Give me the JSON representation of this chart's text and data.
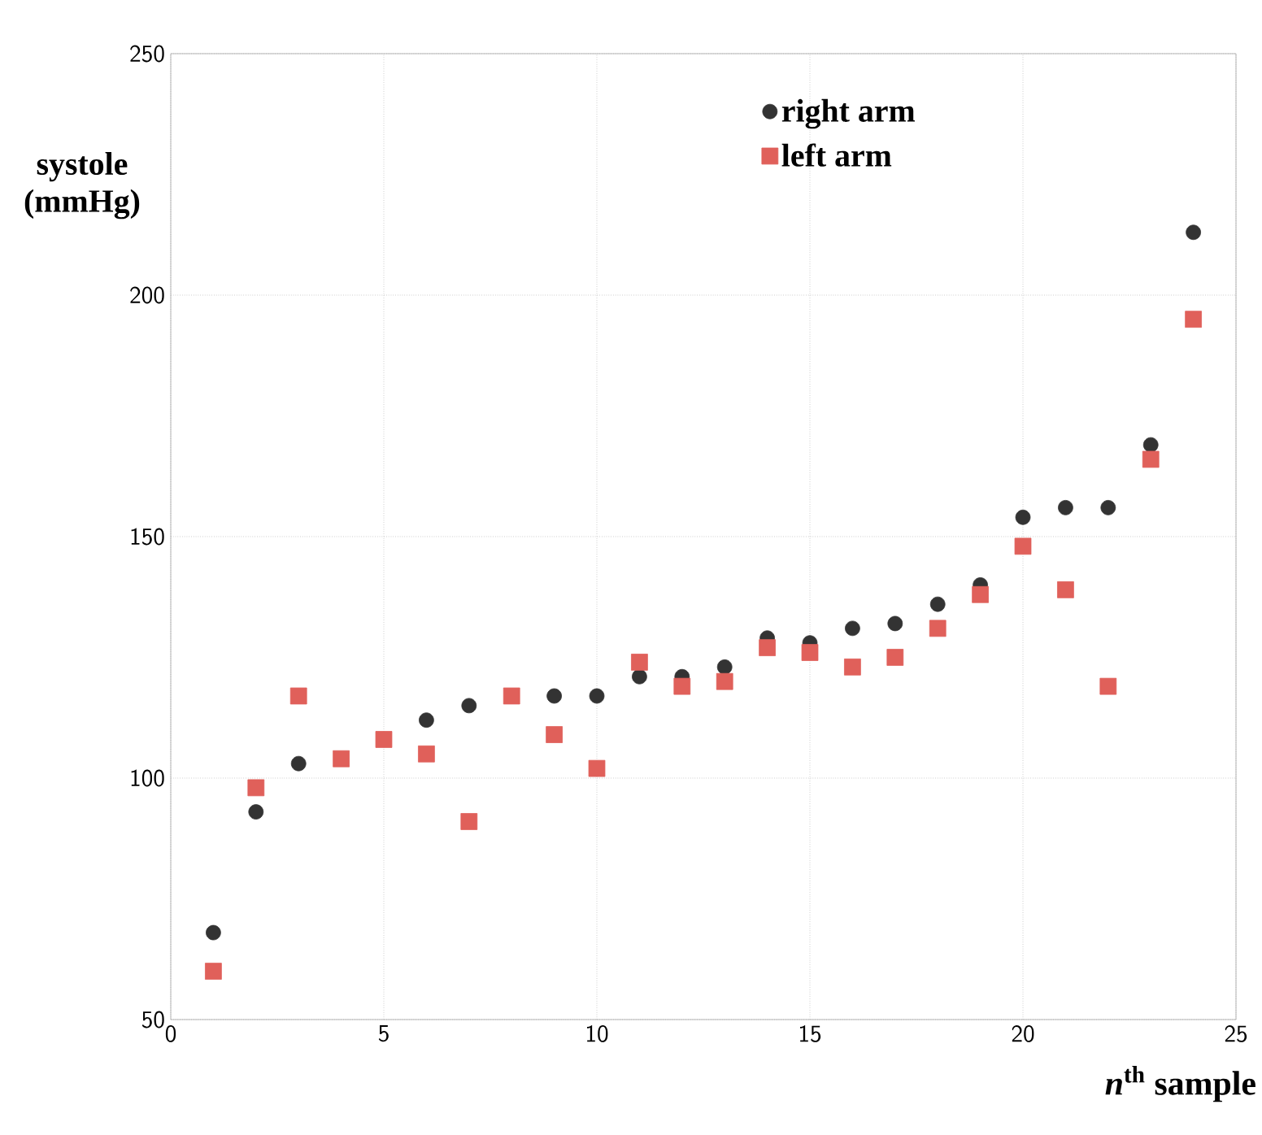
{
  "chart_data": {
    "type": "scatter",
    "xlabel": "*n*$^{th}$ sample",
    "ylabel": "systole (mmHg)",
    "x": [
      1,
      2,
      3,
      4,
      5,
      6,
      7,
      8,
      9,
      10,
      11,
      12,
      13,
      14,
      15,
      16,
      17,
      18,
      19,
      20,
      21,
      22,
      23,
      24
    ],
    "series": [
      {
        "name": "right arm",
        "color": "#333333",
        "marker": "circle",
        "values": [
          68,
          93,
          103,
          null,
          null,
          112,
          115,
          null,
          117,
          117,
          121,
          121,
          123,
          129,
          128,
          131,
          132,
          136,
          140,
          154,
          156,
          156,
          169,
          213
        ]
      },
      {
        "name": "left arm",
        "color": "#e0605a",
        "marker": "square",
        "values": [
          60,
          98,
          117,
          104,
          108,
          105,
          91,
          117,
          109,
          102,
          124,
          119,
          120,
          127,
          126,
          123,
          125,
          131,
          138,
          148,
          139,
          119,
          166,
          195
        ]
      }
    ],
    "xlim": [
      0,
      25
    ],
    "xticks": [
      0,
      5,
      10,
      15,
      20,
      25
    ],
    "ylim": [
      50,
      250
    ],
    "yticks": [
      50,
      100,
      150,
      200,
      250
    ],
    "grid": true,
    "legend": "top right"
  }
}
